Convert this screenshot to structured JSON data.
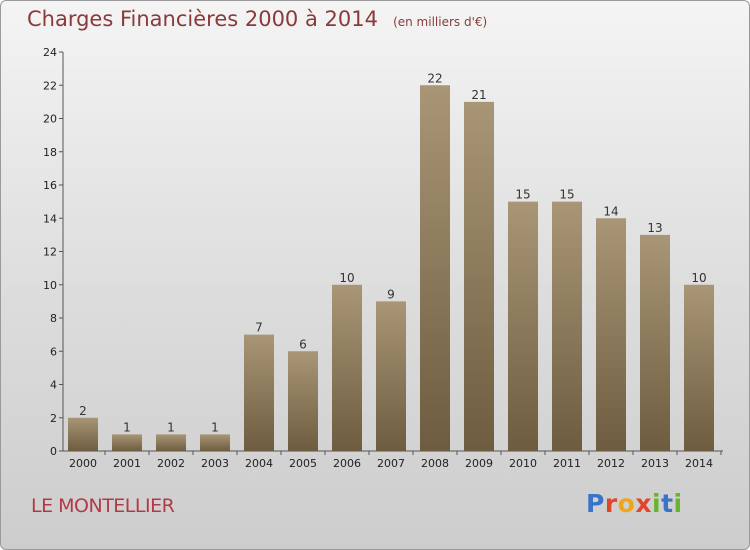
{
  "header": {
    "title": "Charges Financières 2000 à 2014",
    "unit": "(en milliers d'€)"
  },
  "footer": {
    "town": "LE MONTELLIER",
    "logo_text": "Proxiti"
  },
  "colors": {
    "bar_top": "#a89676",
    "bar_bottom": "#6e5c40",
    "title": "#8a3a3a",
    "town": "#b23a48"
  },
  "chart_data": {
    "type": "bar",
    "title": "Charges Financières 2000 à 2014",
    "subtitle": "(en milliers d'€)",
    "xlabel": "",
    "ylabel": "",
    "categories": [
      "2000",
      "2001",
      "2002",
      "2003",
      "2004",
      "2005",
      "2006",
      "2007",
      "2008",
      "2009",
      "2010",
      "2011",
      "2012",
      "2013",
      "2014"
    ],
    "values": [
      2,
      1,
      1,
      1,
      7,
      6,
      10,
      9,
      22,
      21,
      15,
      15,
      14,
      13,
      10
    ],
    "ylim": [
      0,
      24
    ],
    "yticks": [
      0,
      2,
      4,
      6,
      8,
      10,
      12,
      14,
      16,
      18,
      20,
      22,
      24
    ],
    "grid": false,
    "legend": "none"
  }
}
